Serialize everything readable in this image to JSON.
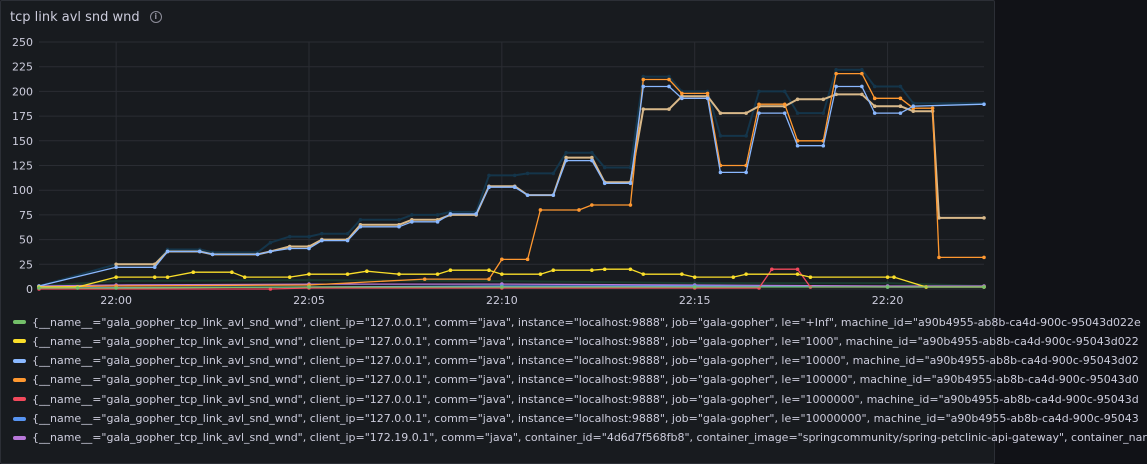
{
  "panel": {
    "title": "tcp link avl snd wnd",
    "info_icon": "info-circle-icon"
  },
  "chart_data": {
    "type": "line",
    "title": "tcp link avl snd wnd",
    "xlabel": "",
    "ylabel": "",
    "ylim": [
      0,
      250
    ],
    "yticks": [
      0,
      25,
      50,
      75,
      100,
      125,
      150,
      175,
      200,
      225,
      250
    ],
    "xlim": [
      "21:58:00",
      "22:22:30"
    ],
    "xticks": [
      "22:00",
      "22:05",
      "22:10",
      "22:15",
      "22:20"
    ],
    "grid": true,
    "legend_position": "bottom",
    "series": [
      {
        "name": "{__name__=\"gala_gopher_tcp_link_avl_snd_wnd\", client_ip=\"127.0.0.1\", comm=\"java\", instance=\"localhost:9888\", job=\"gala-gopher\", le=\"+Inf\", machine_id=\"a90b4955-ab8b-ca4d-900c-95043d022e",
        "color": "#73bf69",
        "points": [
          [
            "21:58:00",
            1
          ],
          [
            "21:59:00",
            1
          ],
          [
            "22:00:00",
            1
          ],
          [
            "22:05:00",
            2
          ],
          [
            "22:10:00",
            2
          ],
          [
            "22:15:00",
            2
          ],
          [
            "22:20:00",
            2
          ],
          [
            "22:22:30",
            2
          ]
        ]
      },
      {
        "name": "{__name__=\"gala_gopher_tcp_link_avl_snd_wnd\", client_ip=\"127.0.0.1\", comm=\"java\", instance=\"localhost:9888\", job=\"gala-gopher\", le=\"1000\", machine_id=\"a90b4955-ab8b-ca4d-900c-95043d022",
        "color": "#fade2a",
        "points": [
          [
            "21:58:00",
            2
          ],
          [
            "21:59:00",
            2
          ],
          [
            "22:00:00",
            12
          ],
          [
            "22:01:00",
            12
          ],
          [
            "22:01:20",
            12
          ],
          [
            "22:02:00",
            17
          ],
          [
            "22:03:00",
            17
          ],
          [
            "22:03:20",
            12
          ],
          [
            "22:04:30",
            12
          ],
          [
            "22:05:00",
            15
          ],
          [
            "22:06:00",
            15
          ],
          [
            "22:06:30",
            18
          ],
          [
            "22:07:20",
            15
          ],
          [
            "22:08:20",
            15
          ],
          [
            "22:08:40",
            19
          ],
          [
            "22:09:40",
            19
          ],
          [
            "22:10:00",
            15
          ],
          [
            "22:11:00",
            15
          ],
          [
            "22:11:20",
            19
          ],
          [
            "22:12:20",
            19
          ],
          [
            "22:12:40",
            20
          ],
          [
            "22:13:20",
            20
          ],
          [
            "22:13:40",
            15
          ],
          [
            "22:14:40",
            15
          ],
          [
            "22:15:00",
            12
          ],
          [
            "22:16:00",
            12
          ],
          [
            "22:16:20",
            15
          ],
          [
            "22:17:40",
            15
          ],
          [
            "22:18:00",
            12
          ],
          [
            "22:20:00",
            12
          ],
          [
            "22:20:10",
            12
          ],
          [
            "22:21:00",
            2
          ],
          [
            "22:22:30",
            2
          ]
        ]
      },
      {
        "name": "{__name__=\"gala_gopher_tcp_link_avl_snd_wnd\", client_ip=\"127.0.0.1\", comm=\"java\", instance=\"localhost:9888\", job=\"gala-gopher\", le=\"10000\", machine_id=\"a90b4955-ab8b-ca4d-900c-95043d02",
        "color": "#8ab8ff",
        "points": [
          [
            "21:58:00",
            3
          ],
          [
            "22:00:00",
            22
          ],
          [
            "22:01:00",
            22
          ],
          [
            "22:01:20",
            38
          ],
          [
            "22:02:10",
            38
          ],
          [
            "22:02:30",
            35
          ],
          [
            "22:03:40",
            35
          ],
          [
            "22:04:00",
            38
          ],
          [
            "22:04:30",
            41
          ],
          [
            "22:05:00",
            41
          ],
          [
            "22:05:20",
            49
          ],
          [
            "22:06:00",
            49
          ],
          [
            "22:06:20",
            63
          ],
          [
            "22:07:20",
            63
          ],
          [
            "22:07:40",
            68
          ],
          [
            "22:08:20",
            68
          ],
          [
            "22:08:40",
            76
          ],
          [
            "22:09:20",
            76
          ],
          [
            "22:09:40",
            103
          ],
          [
            "22:10:20",
            103
          ],
          [
            "22:10:40",
            95
          ],
          [
            "22:11:20",
            95
          ],
          [
            "22:11:40",
            130
          ],
          [
            "22:12:20",
            130
          ],
          [
            "22:12:40",
            107
          ],
          [
            "22:13:20",
            107
          ],
          [
            "22:13:40",
            205
          ],
          [
            "22:14:20",
            205
          ],
          [
            "22:14:40",
            193
          ],
          [
            "22:15:20",
            193
          ],
          [
            "22:15:40",
            118
          ],
          [
            "22:16:20",
            118
          ],
          [
            "22:16:40",
            178
          ],
          [
            "22:17:20",
            178
          ],
          [
            "22:17:40",
            145
          ],
          [
            "22:18:20",
            145
          ],
          [
            "22:18:40",
            205
          ],
          [
            "22:19:20",
            205
          ],
          [
            "22:19:40",
            178
          ],
          [
            "22:20:20",
            178
          ],
          [
            "22:20:40",
            185
          ],
          [
            "22:22:30",
            187
          ]
        ]
      },
      {
        "name": "{__name__=\"gala_gopher_tcp_link_avl_snd_wnd\", client_ip=\"127.0.0.1\", comm=\"java\", instance=\"localhost:9888\", job=\"gala-gopher\", le=\"100000\", machine_id=\"a90b4955-ab8b-ca4d-900c-95043d0",
        "color": "#ff9830",
        "points": [
          [
            "21:58:00",
            2
          ],
          [
            "22:00:00",
            3
          ],
          [
            "22:05:00",
            4
          ],
          [
            "22:08:00",
            10
          ],
          [
            "22:09:40",
            10
          ],
          [
            "22:10:00",
            30
          ],
          [
            "22:10:40",
            30
          ],
          [
            "22:11:00",
            80
          ],
          [
            "22:12:00",
            80
          ],
          [
            "22:12:20",
            85
          ],
          [
            "22:13:20",
            85
          ],
          [
            "22:13:40",
            212
          ],
          [
            "22:14:20",
            212
          ],
          [
            "22:14:40",
            198
          ],
          [
            "22:15:20",
            198
          ],
          [
            "22:15:40",
            125
          ],
          [
            "22:16:20",
            125
          ],
          [
            "22:16:40",
            187
          ],
          [
            "22:17:20",
            187
          ],
          [
            "22:17:40",
            150
          ],
          [
            "22:18:20",
            150
          ],
          [
            "22:18:40",
            218
          ],
          [
            "22:19:20",
            218
          ],
          [
            "22:19:40",
            193
          ],
          [
            "22:20:20",
            193
          ],
          [
            "22:20:40",
            183
          ],
          [
            "22:21:10",
            183
          ],
          [
            "22:21:20",
            32
          ],
          [
            "22:22:30",
            32
          ]
        ]
      },
      {
        "name": "{__name__=\"gala_gopher_tcp_link_avl_snd_wnd\", client_ip=\"127.0.0.1\", comm=\"java\", instance=\"localhost:9888\", job=\"gala-gopher\", le=\"1000000\", machine_id=\"a90b4955-ab8b-ca4d-900c-95043d",
        "color": "#f2495c",
        "points": [
          [
            "21:58:00",
            0
          ],
          [
            "22:04:00",
            0
          ],
          [
            "22:05:00",
            1
          ],
          [
            "22:10:00",
            1
          ],
          [
            "22:15:00",
            1
          ],
          [
            "22:16:40",
            1
          ],
          [
            "22:17:00",
            20
          ],
          [
            "22:17:40",
            20
          ],
          [
            "22:18:00",
            2
          ],
          [
            "22:22:30",
            2
          ]
        ]
      },
      {
        "name": "{__name__=\"gala_gopher_tcp_link_avl_snd_wnd\", client_ip=\"127.0.0.1\", comm=\"java\", instance=\"localhost:9888\", job=\"gala-gopher\", le=\"10000000\", machine_id=\"a90b4955-ab8b-ca4d-900c-95043",
        "color": "#5794f2",
        "points": [
          [
            "21:58:00",
            1
          ],
          [
            "22:05:00",
            2
          ],
          [
            "22:10:00",
            3
          ],
          [
            "22:15:00",
            3
          ],
          [
            "22:20:00",
            2
          ],
          [
            "22:22:30",
            2
          ]
        ]
      },
      {
        "name": "{__name__=\"gala_gopher_tcp_link_avl_snd_wnd\", client_ip=\"172.19.0.1\", comm=\"java\", container_id=\"4d6d7f568fb8\", container_image=\"springcommunity/spring-petclinic-api-gateway\", container_nar",
        "color": "#b877d9",
        "points": [
          [
            "21:58:00",
            3
          ],
          [
            "22:00:00",
            4
          ],
          [
            "22:05:00",
            5
          ],
          [
            "22:10:00",
            5
          ],
          [
            "22:15:00",
            4
          ],
          [
            "22:20:00",
            3
          ],
          [
            "22:22:30",
            3
          ]
        ]
      }
    ],
    "extra_series": [
      {
        "color": "#14354a",
        "points": [
          [
            "21:58:00",
            3
          ],
          [
            "22:00:00",
            25
          ],
          [
            "22:01:00",
            25
          ],
          [
            "22:01:20",
            40
          ],
          [
            "22:02:10",
            40
          ],
          [
            "22:02:30",
            37
          ],
          [
            "22:03:40",
            37
          ],
          [
            "22:04:00",
            47
          ],
          [
            "22:04:30",
            53
          ],
          [
            "22:05:00",
            53
          ],
          [
            "22:05:20",
            56
          ],
          [
            "22:06:00",
            56
          ],
          [
            "22:06:20",
            70
          ],
          [
            "22:07:20",
            70
          ],
          [
            "22:07:40",
            75
          ],
          [
            "22:08:20",
            75
          ],
          [
            "22:08:40",
            78
          ],
          [
            "22:09:20",
            78
          ],
          [
            "22:09:40",
            115
          ],
          [
            "22:10:20",
            115
          ],
          [
            "22:10:40",
            117
          ],
          [
            "22:11:20",
            117
          ],
          [
            "22:11:40",
            138
          ],
          [
            "22:12:20",
            138
          ],
          [
            "22:12:40",
            123
          ],
          [
            "22:13:20",
            123
          ],
          [
            "22:13:40",
            215
          ],
          [
            "22:14:20",
            215
          ],
          [
            "22:14:40",
            200
          ],
          [
            "22:15:20",
            200
          ],
          [
            "22:15:40",
            155
          ],
          [
            "22:16:20",
            155
          ],
          [
            "22:16:40",
            200
          ],
          [
            "22:17:20",
            200
          ],
          [
            "22:17:40",
            178
          ],
          [
            "22:18:20",
            178
          ],
          [
            "22:18:40",
            222
          ],
          [
            "22:19:20",
            222
          ],
          [
            "22:19:40",
            205
          ],
          [
            "22:20:20",
            205
          ],
          [
            "22:20:40",
            188
          ],
          [
            "22:22:30",
            188
          ]
        ]
      },
      {
        "color": "#d9b98a",
        "points": [
          [
            "22:00:00",
            25
          ],
          [
            "22:01:00",
            25
          ],
          [
            "22:01:20",
            38
          ],
          [
            "22:02:10",
            38
          ],
          [
            "22:02:30",
            35
          ],
          [
            "22:03:40",
            35
          ],
          [
            "22:04:00",
            38
          ],
          [
            "22:04:30",
            43
          ],
          [
            "22:05:00",
            43
          ],
          [
            "22:05:20",
            50
          ],
          [
            "22:06:00",
            50
          ],
          [
            "22:06:20",
            65
          ],
          [
            "22:07:20",
            65
          ],
          [
            "22:07:40",
            70
          ],
          [
            "22:08:20",
            70
          ],
          [
            "22:08:40",
            75
          ],
          [
            "22:09:20",
            75
          ],
          [
            "22:09:40",
            104
          ],
          [
            "22:10:20",
            104
          ],
          [
            "22:10:40",
            95
          ],
          [
            "22:11:20",
            95
          ],
          [
            "22:11:40",
            133
          ],
          [
            "22:12:20",
            133
          ],
          [
            "22:12:40",
            108
          ],
          [
            "22:13:20",
            108
          ],
          [
            "22:13:40",
            182
          ],
          [
            "22:14:20",
            182
          ],
          [
            "22:14:40",
            195
          ],
          [
            "22:15:20",
            195
          ],
          [
            "22:15:40",
            178
          ],
          [
            "22:16:20",
            178
          ],
          [
            "22:16:40",
            185
          ],
          [
            "22:17:20",
            185
          ],
          [
            "22:17:40",
            192
          ],
          [
            "22:18:20",
            192
          ],
          [
            "22:18:40",
            197
          ],
          [
            "22:19:20",
            197
          ],
          [
            "22:19:40",
            185
          ],
          [
            "22:20:20",
            185
          ],
          [
            "22:20:40",
            180
          ],
          [
            "22:21:10",
            180
          ],
          [
            "22:21:20",
            72
          ],
          [
            "22:22:30",
            72
          ]
        ]
      },
      {
        "color": "#1a3a2e",
        "points": [
          [
            "21:58:00",
            3
          ],
          [
            "22:00:00",
            8
          ],
          [
            "22:05:00",
            9
          ],
          [
            "22:10:00",
            8
          ],
          [
            "22:15:00",
            6
          ],
          [
            "22:20:00",
            6
          ],
          [
            "22:22:30",
            3
          ]
        ]
      }
    ]
  }
}
